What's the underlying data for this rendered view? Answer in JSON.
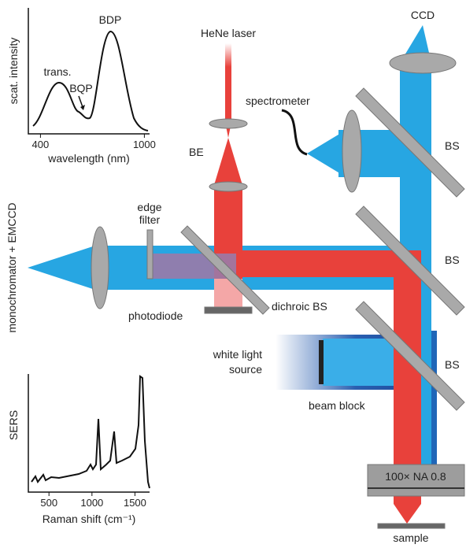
{
  "labels": {
    "ccd": "CCD",
    "hene_laser": "HeNe laser",
    "spectrometer": "spectrometer",
    "be": "BE",
    "bs_top": "BS",
    "bs_middle": "BS",
    "bs_bottom": "BS",
    "edge_filter": [
      "edge",
      "filter"
    ],
    "photodiode": "photodiode",
    "dichroic_bs": "dichroic BS",
    "monochromator": "monochromator + EMCCD",
    "white_light_source": [
      "white light",
      "source"
    ],
    "beam_block": "beam block",
    "objective": "100× NA 0.8",
    "sample": "sample"
  },
  "scattering_inset": {
    "y_label": "scat. intensity",
    "x_label": "wavelength (nm)",
    "xlim": [
      330,
      1030
    ],
    "xticks": [
      400,
      1000
    ],
    "annotations": {
      "trans": "trans.",
      "bqp": "BQP",
      "bdp": "BDP"
    }
  },
  "sers_inset": {
    "y_label": "SERS",
    "x_label": "Raman shift (cm⁻¹)",
    "xlim": [
      260,
      1670
    ],
    "xticks": [
      500,
      1000,
      1500
    ]
  }
}
